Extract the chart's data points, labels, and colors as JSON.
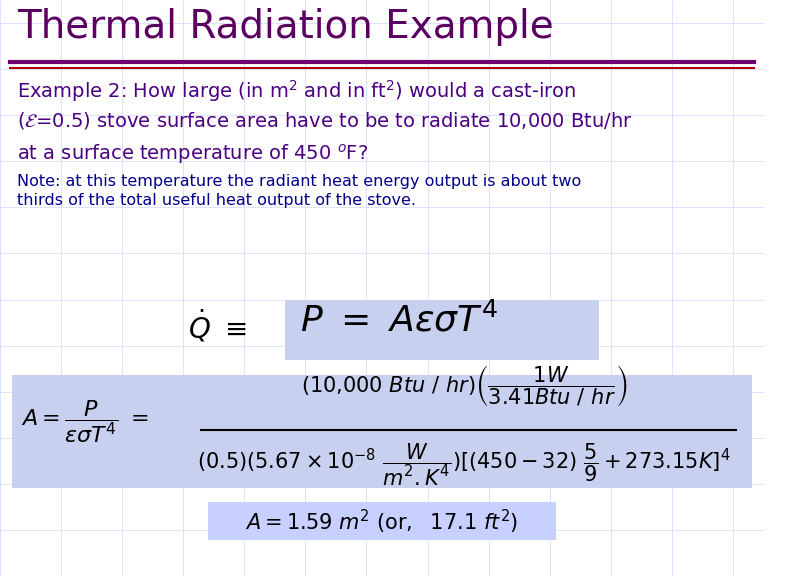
{
  "title": "Thermal Radiation Example",
  "title_color": "#5B0060",
  "title_fontsize": 28,
  "bg_color": "#FFFFFF",
  "body_color": "#4B0082",
  "note_color": "#00008B",
  "box_fill": "#C8D0F0",
  "box_fill_result": "#C8D0FF",
  "separator_color1": "#700070",
  "separator_color2": "#AA0000",
  "grid_color": "#D0D8FF"
}
